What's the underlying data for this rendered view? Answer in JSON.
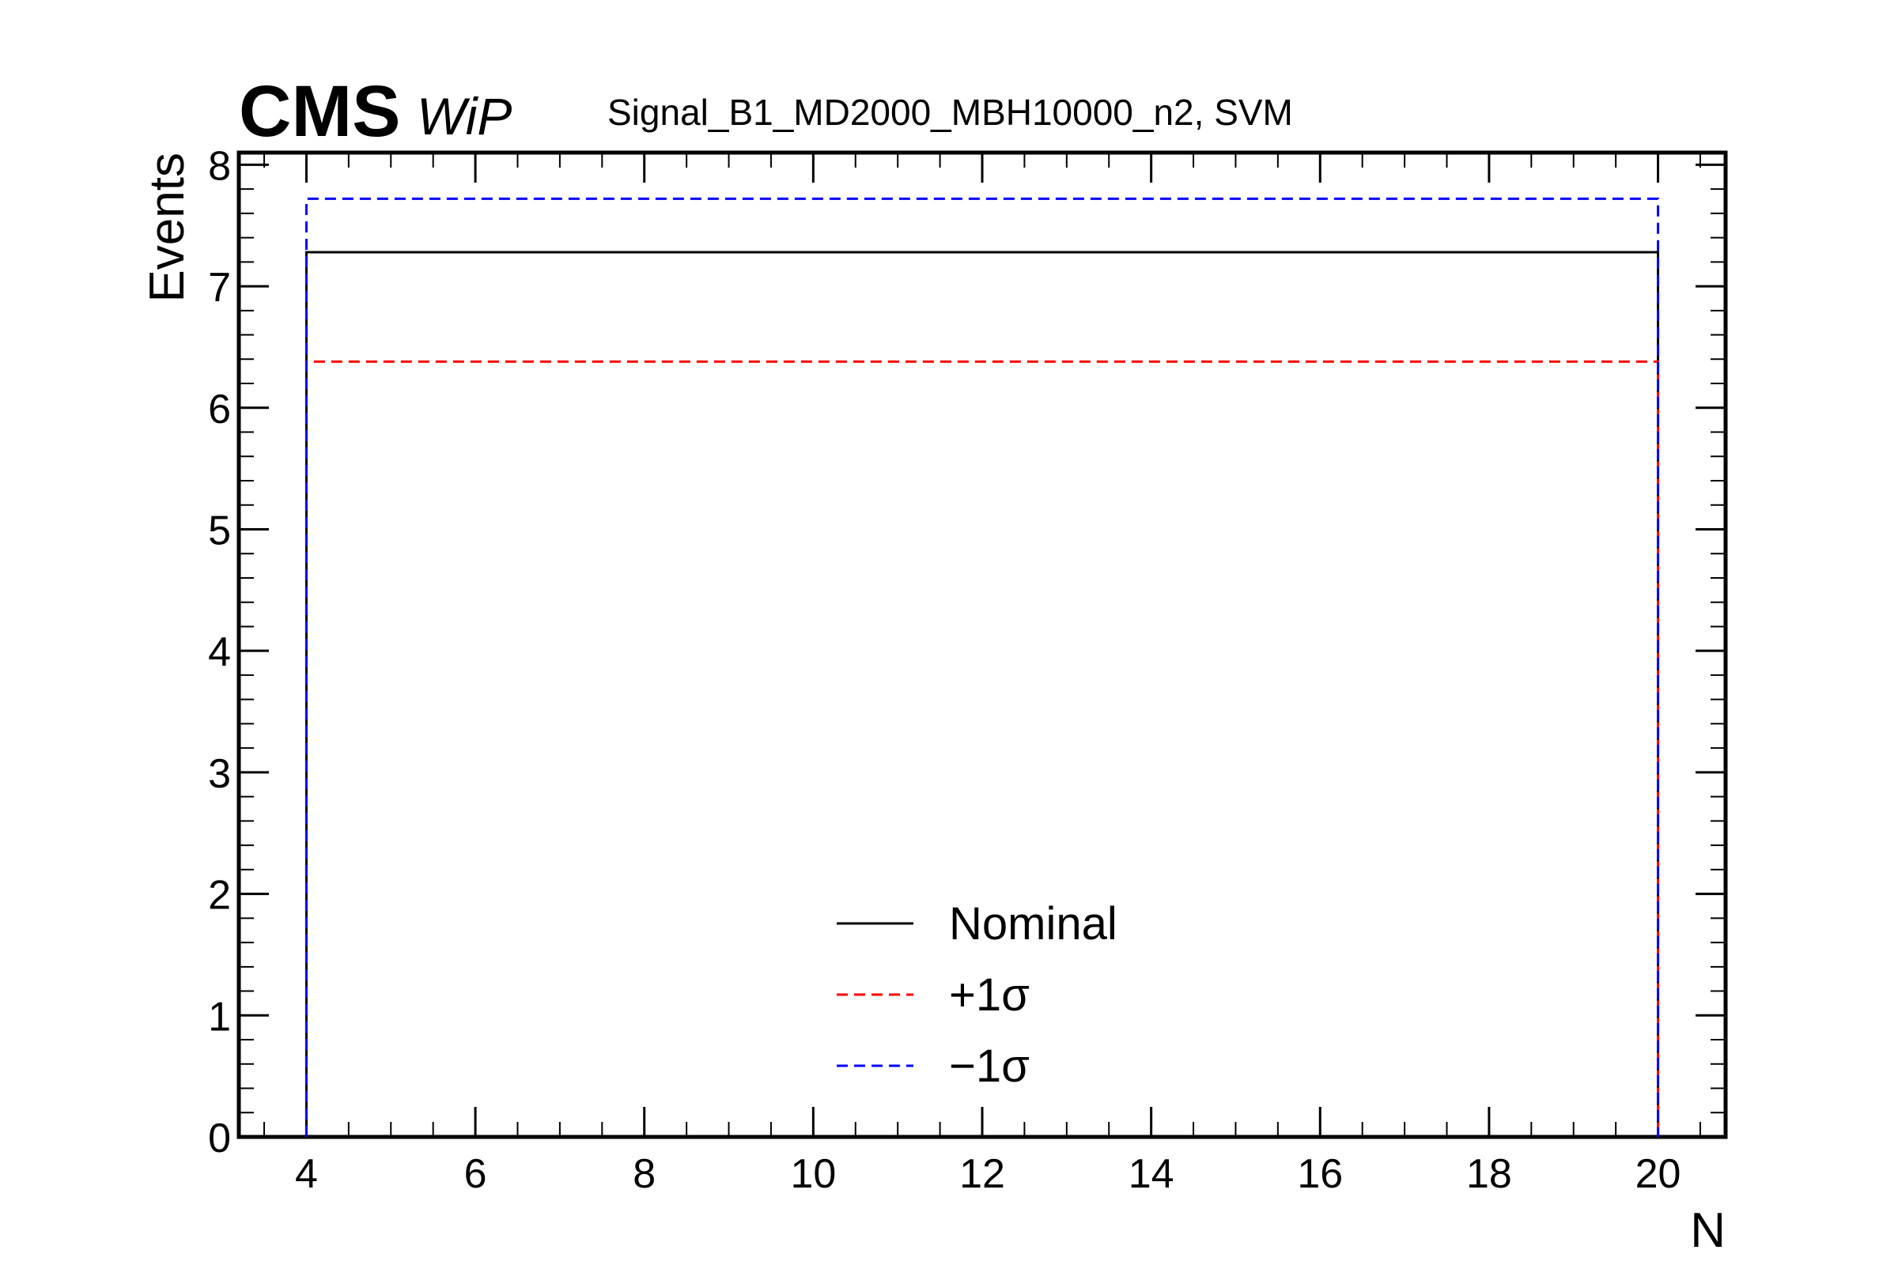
{
  "header": {
    "experiment": "CMS",
    "status": "WiP",
    "title": "Signal_B1_MD2000_MBH10000_n2, SVM"
  },
  "chart_data": {
    "type": "line",
    "title": "Signal_B1_MD2000_MBH10000_n2, SVM",
    "xlabel": "N",
    "ylabel": "Events",
    "xlim": [
      3.2,
      20.8
    ],
    "ylim": [
      0,
      8.1
    ],
    "xticks": [
      4,
      6,
      8,
      10,
      12,
      14,
      16,
      18,
      20
    ],
    "yticks": [
      0,
      1,
      2,
      3,
      4,
      5,
      6,
      7,
      8
    ],
    "grid": false,
    "legend_position": "bottom-center",
    "series": [
      {
        "name": "Nominal",
        "color": "#000000",
        "style": "solid",
        "x": [
          4,
          20
        ],
        "y": [
          7.28,
          7.28
        ]
      },
      {
        "name": "+1σ",
        "color": "#ff0000",
        "style": "dashed",
        "x": [
          4,
          20
        ],
        "y": [
          6.38,
          6.38
        ]
      },
      {
        "name": "−1σ",
        "color": "#0000ff",
        "style": "dashed",
        "x": [
          4,
          20
        ],
        "y": [
          7.72,
          7.72
        ]
      }
    ]
  }
}
